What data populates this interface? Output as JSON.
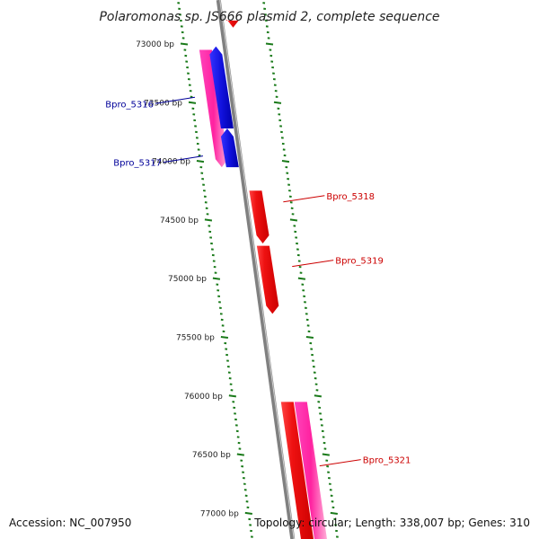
{
  "title": "Polaromonas sp. JS666 plasmid 2, complete sequence",
  "footer": {
    "accession": "Accession: NC_007950",
    "summary": "Topology: circular; Length: 338,007 bp; Genes: 310"
  },
  "map": {
    "range_bp": [
      72800,
      77250
    ],
    "colors": {
      "backbone": "#808080",
      "tick": "#1a7a1a",
      "forward_gene": "#ee1111",
      "forward_cds": "#ff33aa",
      "reverse_gene": "#1111dd",
      "forward_label": "#cc0000",
      "reverse_label": "#000099"
    },
    "tick_labels": [
      {
        "bp": 73000,
        "text": "73000 bp"
      },
      {
        "bp": 73500,
        "text": "73500 bp"
      },
      {
        "bp": 74000,
        "text": "74000 bp"
      },
      {
        "bp": 74500,
        "text": "74500 bp"
      },
      {
        "bp": 75000,
        "text": "75000 bp"
      },
      {
        "bp": 75500,
        "text": "75500 bp"
      },
      {
        "bp": 76000,
        "text": "76000 bp"
      },
      {
        "bp": 76500,
        "text": "76500 bp"
      },
      {
        "bp": 77000,
        "text": "77000 bp"
      }
    ],
    "features": [
      {
        "strand": "+",
        "kind": "gene",
        "start": 72800,
        "end": 72860
      },
      {
        "strand": "+",
        "kind": "cds",
        "start": 73050,
        "end": 74050
      },
      {
        "strand": "-",
        "kind": "gene",
        "start": 73020,
        "end": 73720
      },
      {
        "strand": "-",
        "kind": "gene",
        "start": 73720,
        "end": 74050
      },
      {
        "strand": "+",
        "kind": "gene",
        "start": 74250,
        "end": 74700
      },
      {
        "strand": "+",
        "kind": "gene",
        "start": 74720,
        "end": 75300
      },
      {
        "strand": "+",
        "kind": "gene",
        "start": 76050,
        "end": 77300
      },
      {
        "strand": "+",
        "kind": "cds",
        "start": 76050,
        "end": 77300
      }
    ],
    "gene_labels": [
      {
        "text": "Bpro_5316",
        "strand": "-",
        "bp": 73500
      },
      {
        "text": "Bpro_5317",
        "strand": "-",
        "bp": 74000
      },
      {
        "text": "Bpro_5318",
        "strand": "+",
        "bp": 74300
      },
      {
        "text": "Bpro_5319",
        "strand": "+",
        "bp": 74850
      },
      {
        "text": "Bpro_5321",
        "strand": "+",
        "bp": 76550
      }
    ]
  }
}
